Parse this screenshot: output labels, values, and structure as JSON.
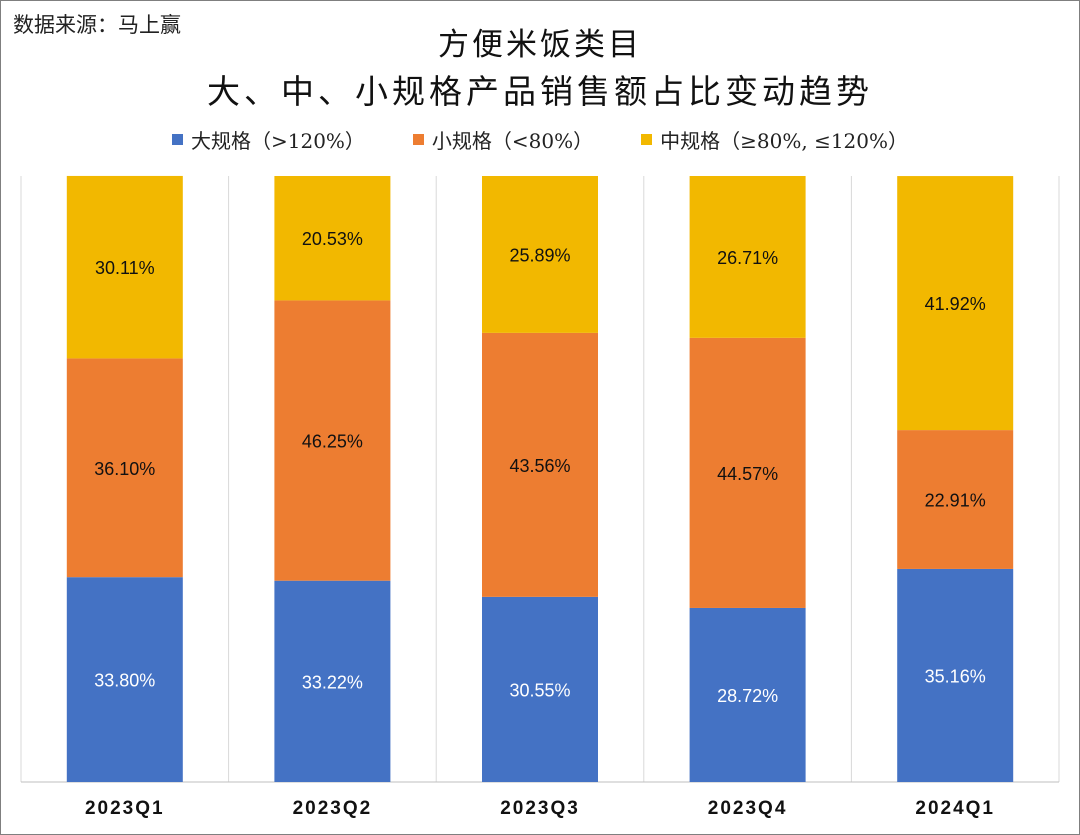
{
  "source_text": "数据来源：马上赢",
  "title_line1": "方便米饭类目",
  "title_line2": "大、中、小规格产品销售额占比变动趋势",
  "colors": {
    "large": "#4472C4",
    "small": "#ED7D31",
    "medium": "#F2B800"
  },
  "chart_data": {
    "type": "bar",
    "stacked": true,
    "percent_stacked": true,
    "title": "方便米饭类目 大、中、小规格产品销售额占比变动趋势",
    "categories": [
      "2023Q1",
      "2023Q2",
      "2023Q3",
      "2023Q4",
      "2024Q1"
    ],
    "series": [
      {
        "name": "大规格（>120%）",
        "key": "large",
        "values": [
          33.8,
          33.22,
          30.55,
          28.72,
          35.16
        ],
        "labels": [
          "33.80%",
          "33.22%",
          "30.55%",
          "28.72%",
          "35.16%"
        ]
      },
      {
        "name": "小规格（<80%）",
        "key": "small",
        "values": [
          36.1,
          46.25,
          43.56,
          44.57,
          22.91
        ],
        "labels": [
          "36.10%",
          "46.25%",
          "43.56%",
          "44.57%",
          "22.91%"
        ]
      },
      {
        "name": "中规格（≥80%, ≤120%）",
        "key": "medium",
        "values": [
          30.11,
          20.53,
          25.89,
          26.71,
          41.92
        ],
        "labels": [
          "30.11%",
          "20.53%",
          "25.89%",
          "26.71%",
          "41.92%"
        ]
      }
    ],
    "ylim": [
      0,
      100
    ],
    "grid": false,
    "legend_position": "top"
  }
}
